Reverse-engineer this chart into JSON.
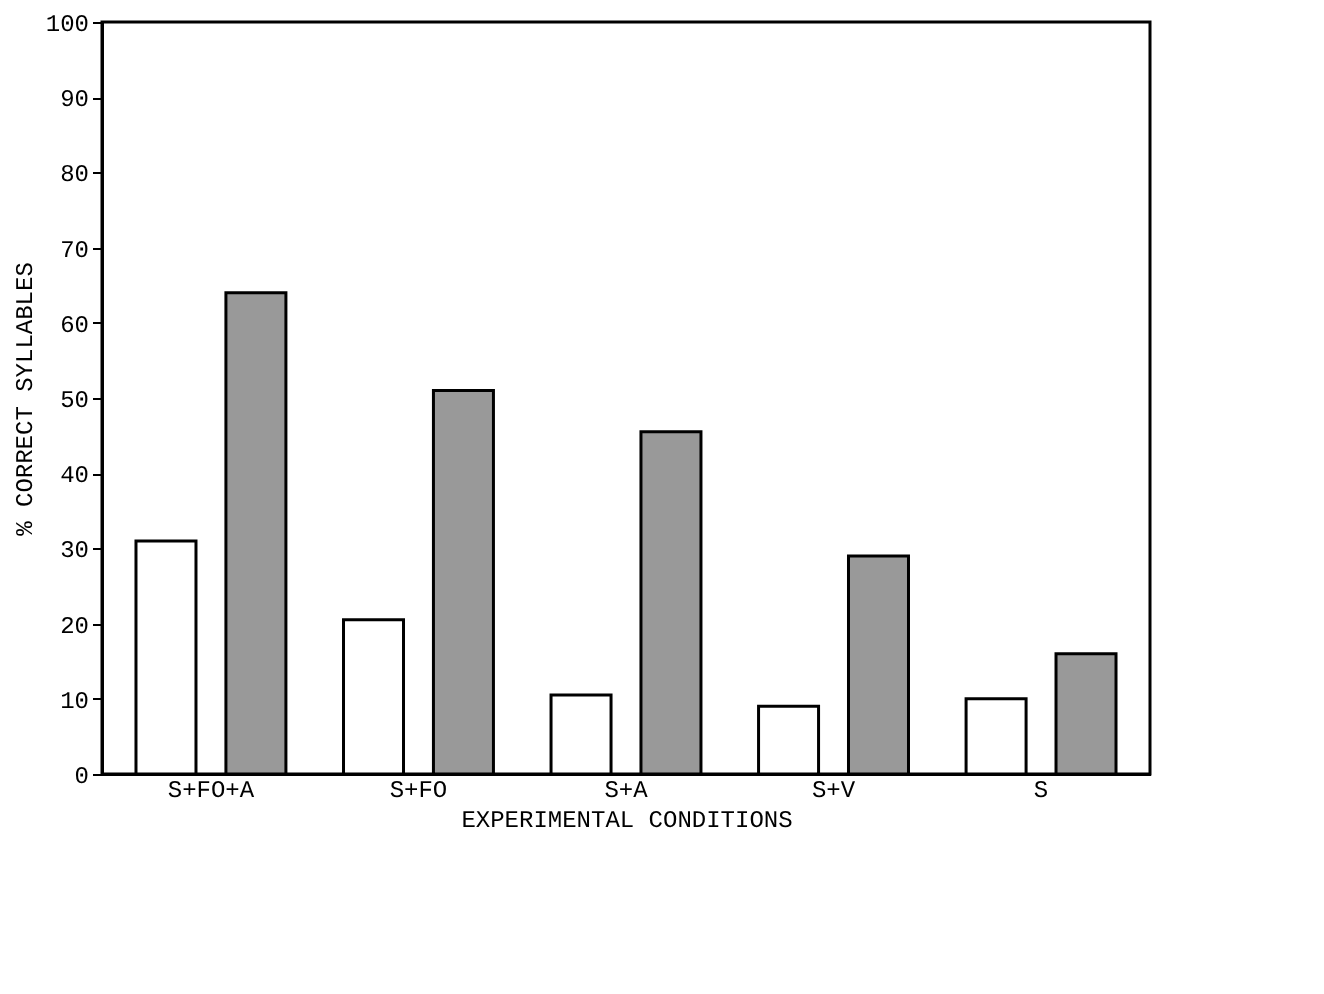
{
  "chart_data": {
    "type": "bar",
    "xlabel": "EXPERIMENTAL CONDITIONS",
    "ylabel": "% CORRECT SYLLABLES",
    "categories": [
      "S+FO+A",
      "S+FO",
      "S+A",
      "S+V",
      "S"
    ],
    "series": [
      {
        "color": "#ffffff",
        "values": [
          31,
          20.5,
          10.5,
          9,
          10
        ]
      },
      {
        "color": "#999999",
        "values": [
          64,
          51,
          45.5,
          29,
          16
        ]
      }
    ],
    "ylim": [
      0,
      100
    ],
    "yticks": [
      0,
      10,
      20,
      30,
      40,
      50,
      60,
      70,
      80,
      90,
      100
    ],
    "grid": false,
    "legend": false
  }
}
